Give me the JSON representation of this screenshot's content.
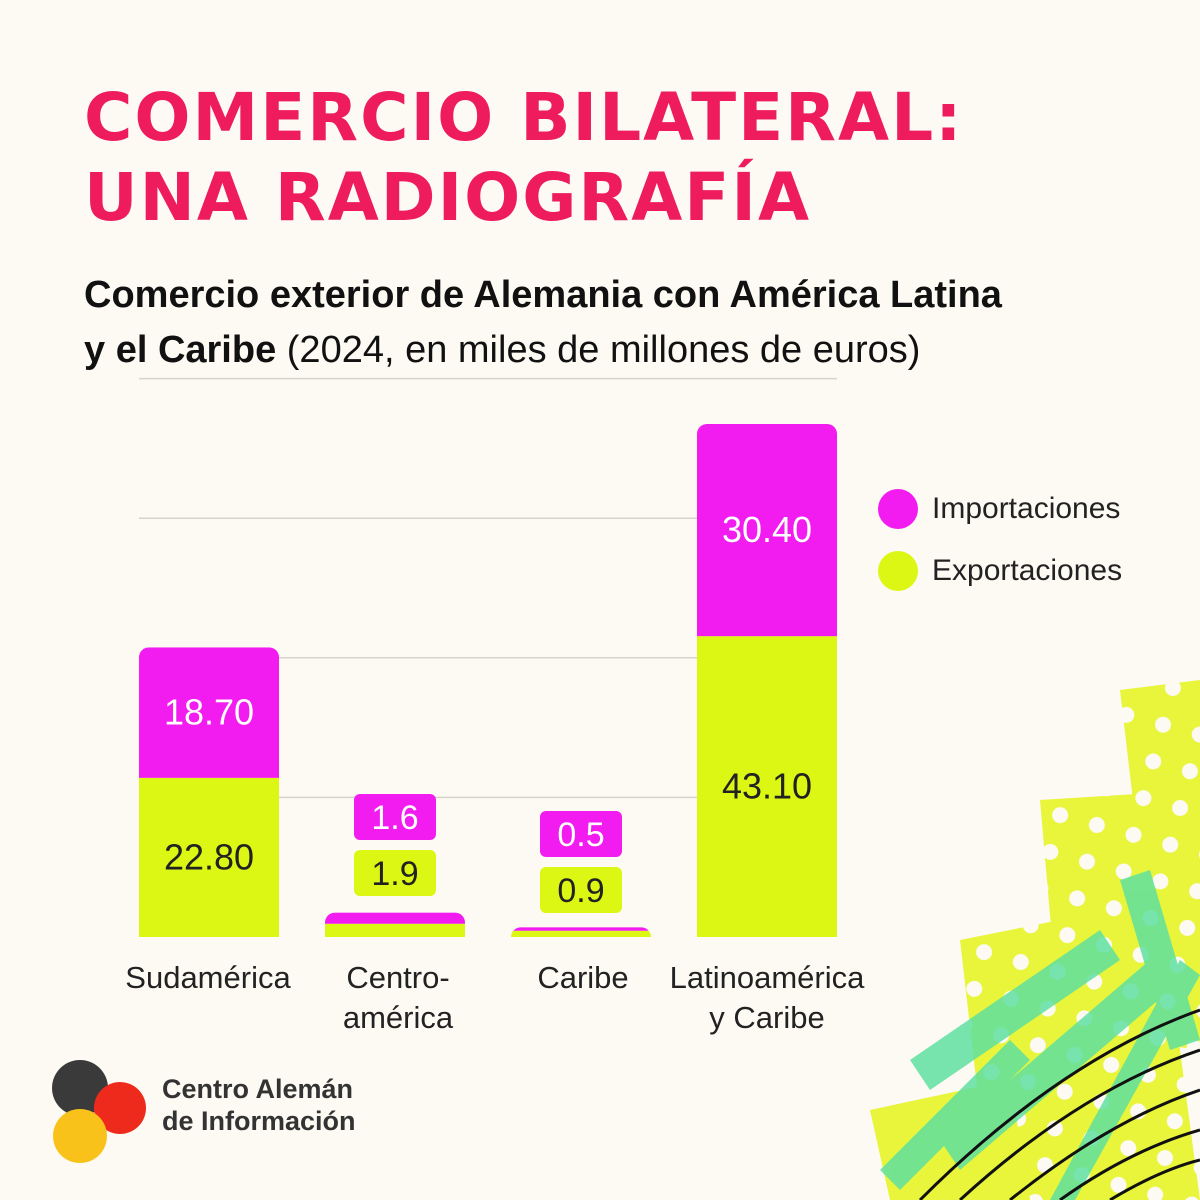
{
  "title": {
    "line1": "COMERCIO BILATERAL:",
    "line2": "UNA RADIOGRAFÍA"
  },
  "subtitle": {
    "bold_part1": "Comercio exterior de Alemania con América Latina",
    "bold_part2": "y el Caribe",
    "regular_part": " (2024, en miles de millones de euros)"
  },
  "colors": {
    "importaciones": "#f21bf0",
    "exportaciones": "#dcf713",
    "title": "#ee1c5c"
  },
  "chart_data": {
    "type": "bar",
    "stacked": true,
    "categories": [
      "Sudamérica",
      "Centro-américa",
      "Caribe",
      "Latinoamérica y Caribe"
    ],
    "category_labels": [
      [
        "Sudamérica"
      ],
      [
        "Centro-",
        "américa"
      ],
      [
        "Caribe"
      ],
      [
        "Latinoamérica",
        "y Caribe"
      ]
    ],
    "series": [
      {
        "name": "Exportaciones",
        "values": [
          22.8,
          1.9,
          0.9,
          43.1
        ],
        "labels": [
          "22.80",
          "1.9",
          "0.9",
          "43.10"
        ]
      },
      {
        "name": "Importaciones",
        "values": [
          18.7,
          1.6,
          0.5,
          30.4
        ],
        "labels": [
          "18.70",
          "1.6",
          "0.5",
          "30.40"
        ]
      }
    ],
    "legend": [
      "Importaciones",
      "Exportaciones"
    ],
    "ylim": [
      0,
      80
    ],
    "grid": true,
    "title": "Comercio exterior de Alemania con América Latina y el Caribe",
    "xlabel": "",
    "ylabel": ""
  },
  "logo": {
    "line1": "Centro Alemán",
    "line2": "de Información"
  }
}
